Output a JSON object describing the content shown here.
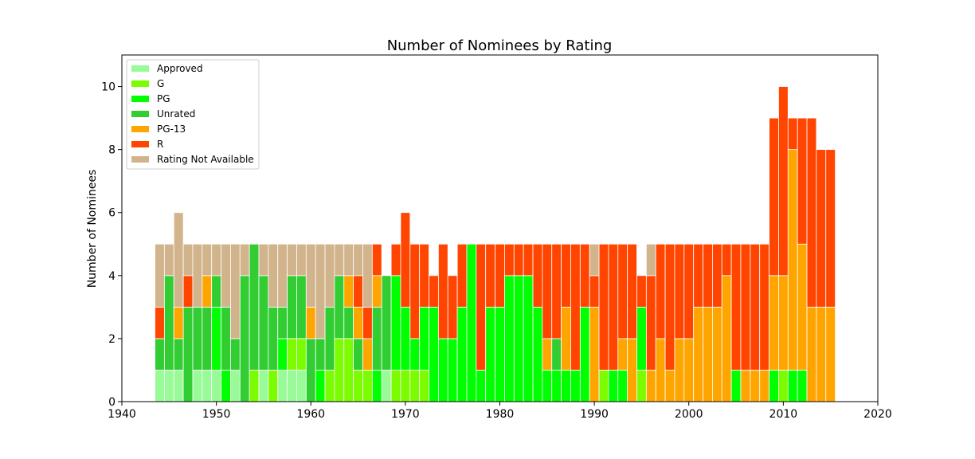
{
  "chart_data": {
    "type": "bar",
    "stacked": true,
    "title": "Number of Nominees by Rating",
    "xlabel": "",
    "ylabel": "Number of Nominees",
    "xlim": [
      1940,
      2020
    ],
    "ylim": [
      0,
      11
    ],
    "xticks": [
      1940,
      1950,
      1960,
      1970,
      1980,
      1990,
      2000,
      2010,
      2020
    ],
    "yticks": [
      0,
      2,
      4,
      6,
      8,
      10
    ],
    "grid": false,
    "legend_position": "upper-left",
    "x": [
      1944,
      1945,
      1946,
      1947,
      1948,
      1949,
      1950,
      1951,
      1952,
      1953,
      1954,
      1955,
      1956,
      1957,
      1958,
      1959,
      1960,
      1961,
      1962,
      1963,
      1964,
      1965,
      1966,
      1967,
      1968,
      1969,
      1970,
      1971,
      1972,
      1973,
      1974,
      1975,
      1976,
      1977,
      1978,
      1979,
      1980,
      1981,
      1982,
      1983,
      1984,
      1985,
      1986,
      1987,
      1988,
      1989,
      1990,
      1991,
      1992,
      1993,
      1994,
      1995,
      1996,
      1997,
      1998,
      1999,
      2000,
      2001,
      2002,
      2003,
      2004,
      2005,
      2006,
      2007,
      2008,
      2009,
      2010,
      2011,
      2012,
      2013,
      2014,
      2015
    ],
    "series": [
      {
        "name": "Approved",
        "color": "#98fb98",
        "values": [
          1,
          1,
          1,
          0,
          1,
          1,
          1,
          0,
          1,
          0,
          0,
          1,
          0,
          1,
          1,
          1,
          0,
          0,
          0,
          0,
          0,
          0,
          0,
          0,
          1,
          0,
          0,
          0,
          0,
          0,
          0,
          0,
          0,
          0,
          0,
          0,
          0,
          0,
          0,
          0,
          0,
          0,
          0,
          0,
          0,
          0,
          0,
          0,
          0,
          0,
          0,
          0,
          0,
          0,
          0,
          0,
          0,
          0,
          0,
          0,
          0,
          0,
          0,
          0,
          0,
          0,
          0,
          0,
          0,
          0,
          0,
          0
        ]
      },
      {
        "name": "G",
        "color": "#7cfc00",
        "values": [
          0,
          0,
          0,
          0,
          0,
          0,
          0,
          0,
          0,
          0,
          1,
          0,
          1,
          0,
          1,
          1,
          0,
          0,
          1,
          2,
          2,
          1,
          1,
          0,
          0,
          1,
          1,
          1,
          1,
          0,
          0,
          0,
          0,
          0,
          0,
          0,
          0,
          0,
          0,
          0,
          0,
          0,
          0,
          0,
          0,
          0,
          0,
          1,
          0,
          0,
          0,
          1,
          0,
          0,
          0,
          0,
          0,
          0,
          0,
          0,
          0,
          0,
          0,
          0,
          0,
          0,
          1,
          0,
          0,
          0,
          0,
          0
        ]
      },
      {
        "name": "PG",
        "color": "#00ff00",
        "values": [
          0,
          0,
          0,
          0,
          0,
          0,
          2,
          1,
          0,
          0,
          0,
          0,
          0,
          1,
          0,
          0,
          0,
          1,
          0,
          0,
          0,
          0,
          0,
          1,
          0,
          3,
          2,
          1,
          2,
          3,
          2,
          2,
          3,
          5,
          1,
          3,
          3,
          4,
          4,
          4,
          3,
          1,
          1,
          1,
          1,
          3,
          0,
          0,
          1,
          1,
          0,
          2,
          0,
          0,
          0,
          0,
          0,
          0,
          0,
          0,
          0,
          1,
          0,
          0,
          0,
          1,
          0,
          1,
          1,
          0,
          0,
          0
        ]
      },
      {
        "name": "Unrated",
        "color": "#32cd32",
        "values": [
          1,
          3,
          1,
          3,
          2,
          2,
          1,
          2,
          1,
          4,
          4,
          3,
          2,
          1,
          2,
          2,
          2,
          1,
          2,
          2,
          1,
          1,
          0,
          2,
          3,
          0,
          0,
          0,
          0,
          0,
          0,
          0,
          0,
          0,
          0,
          0,
          0,
          0,
          0,
          0,
          0,
          0,
          1,
          0,
          0,
          0,
          0,
          0,
          0,
          0,
          0,
          0,
          0,
          0,
          0,
          0,
          0,
          0,
          0,
          0,
          0,
          0,
          0,
          0,
          0,
          0,
          0,
          0,
          0,
          0,
          0,
          0
        ]
      },
      {
        "name": "PG-13",
        "color": "#ffa500",
        "values": [
          0,
          0,
          1,
          0,
          0,
          1,
          0,
          0,
          0,
          0,
          0,
          0,
          0,
          0,
          0,
          0,
          1,
          0,
          0,
          0,
          1,
          1,
          1,
          1,
          0,
          0,
          0,
          0,
          0,
          0,
          0,
          0,
          0,
          0,
          0,
          0,
          0,
          0,
          0,
          0,
          0,
          1,
          0,
          2,
          0,
          0,
          3,
          0,
          0,
          1,
          2,
          0,
          1,
          2,
          1,
          2,
          2,
          3,
          3,
          3,
          4,
          0,
          1,
          1,
          1,
          3,
          3,
          7,
          4,
          3,
          3,
          3
        ]
      },
      {
        "name": "R",
        "color": "#ff4500",
        "values": [
          1,
          0,
          0,
          1,
          0,
          0,
          0,
          0,
          0,
          0,
          0,
          0,
          0,
          0,
          0,
          0,
          0,
          0,
          0,
          0,
          0,
          1,
          1,
          1,
          0,
          1,
          3,
          3,
          2,
          1,
          3,
          2,
          2,
          0,
          4,
          2,
          2,
          1,
          1,
          1,
          2,
          3,
          3,
          2,
          4,
          2,
          1,
          4,
          4,
          3,
          3,
          1,
          3,
          3,
          4,
          3,
          3,
          2,
          2,
          2,
          1,
          4,
          4,
          4,
          4,
          5,
          6,
          1,
          4,
          6,
          5,
          5
        ]
      },
      {
        "name": "Rating Not Available",
        "color": "#d2b48c",
        "values": [
          2,
          1,
          3,
          1,
          2,
          1,
          1,
          2,
          3,
          1,
          0,
          1,
          2,
          2,
          1,
          1,
          2,
          3,
          2,
          1,
          1,
          1,
          2,
          0,
          0,
          0,
          0,
          0,
          0,
          0,
          0,
          0,
          0,
          0,
          0,
          0,
          0,
          0,
          0,
          0,
          0,
          0,
          0,
          0,
          0,
          0,
          1,
          0,
          0,
          0,
          0,
          0,
          1,
          0,
          0,
          0,
          0,
          0,
          0,
          0,
          0,
          0,
          0,
          0,
          0,
          0,
          0,
          0,
          0,
          0,
          0,
          0
        ]
      }
    ]
  }
}
